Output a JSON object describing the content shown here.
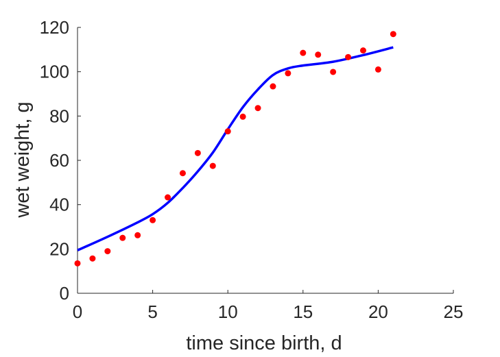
{
  "chart_data": {
    "type": "scatter",
    "title": "",
    "xlabel": "time since birth, d",
    "ylabel": "wet weight, g",
    "xlim": [
      0,
      25
    ],
    "ylim": [
      0,
      120
    ],
    "xticks": [
      "0",
      "5",
      "10",
      "15",
      "20",
      "25"
    ],
    "yticks": [
      "0",
      "20",
      "40",
      "60",
      "80",
      "100",
      "120"
    ],
    "grid": false,
    "legend": "none",
    "series": [
      {
        "kind": "points",
        "color": "#ff0000",
        "x": [
          0,
          1,
          2,
          3,
          4,
          5,
          6,
          7,
          8,
          9,
          10,
          11,
          12,
          13,
          14,
          15,
          16,
          17,
          18,
          19,
          20,
          21
        ],
        "y": [
          13.5,
          15.7,
          19.0,
          25.0,
          26.2,
          33.0,
          43.3,
          54.2,
          63.3,
          57.5,
          73.1,
          79.7,
          83.6,
          93.4,
          99.3,
          108.5,
          107.7,
          99.9,
          106.6,
          109.6,
          101.0,
          117.0
        ]
      },
      {
        "kind": "fit-line",
        "color": "#0000ff",
        "x": [
          0,
          2,
          4,
          5,
          6,
          7,
          8,
          9,
          10,
          11,
          12,
          13,
          14,
          15,
          17,
          19,
          21
        ],
        "y": [
          19.4,
          25.5,
          32.0,
          35.7,
          40.8,
          47.5,
          55.0,
          63.5,
          74.0,
          84.0,
          92.0,
          98.5,
          101.5,
          102.8,
          104.5,
          107.5,
          111.0
        ]
      }
    ]
  }
}
